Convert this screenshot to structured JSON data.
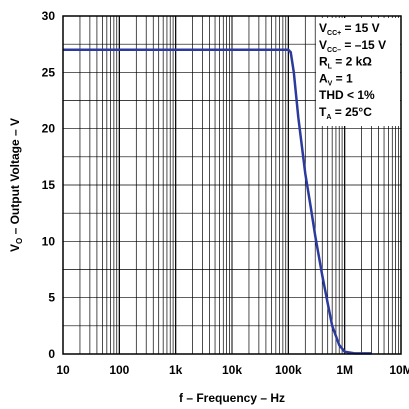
{
  "chart_data": {
    "type": "line",
    "xlabel": "f – Frequency – Hz",
    "ylabel_main": "V",
    "ylabel_sub": "O",
    "ylabel_rest": " – Output Voltage – V",
    "x_scale": "log",
    "xlim": [
      10,
      10000000
    ],
    "ylim": [
      0,
      30
    ],
    "x_ticks": [
      10,
      100,
      1000,
      10000,
      100000,
      1000000,
      10000000
    ],
    "x_tick_labels": [
      "10",
      "100",
      "1k",
      "10k",
      "100k",
      "1M",
      "10M"
    ],
    "y_ticks": [
      0,
      5,
      10,
      15,
      20,
      25,
      30
    ],
    "y_tick_labels": [
      "0",
      "5",
      "10",
      "15",
      "20",
      "25",
      "30"
    ],
    "grid": true,
    "line_color": "#2b3a9c",
    "series": [
      {
        "x": [
          10,
          100,
          1000,
          10000,
          100000,
          110000,
          125000,
          150000,
          200000,
          250000,
          300000,
          400000,
          500000,
          600000,
          800000,
          1000000,
          1500000,
          2000000,
          3000000
        ],
        "y": [
          27,
          27,
          27,
          27,
          27,
          26.8,
          25,
          21,
          16,
          13,
          10.5,
          7,
          4.5,
          2.5,
          0.8,
          0.2,
          0.05,
          0.05,
          0.05
        ]
      }
    ],
    "annotation": {
      "lines": [
        {
          "main": "V",
          "sub": "CC+",
          "rest": " = 15 V"
        },
        {
          "main": "V",
          "sub": "CC–",
          "rest": " = –15 V"
        },
        {
          "main": "R",
          "sub": "L",
          "rest": " = 2 kΩ"
        },
        {
          "main": "A",
          "sub": "V",
          "rest": " = 1"
        },
        {
          "main": "THD < 1%",
          "sub": "",
          "rest": ""
        },
        {
          "main": "T",
          "sub": "A",
          "rest": " = 25°C"
        }
      ]
    }
  }
}
